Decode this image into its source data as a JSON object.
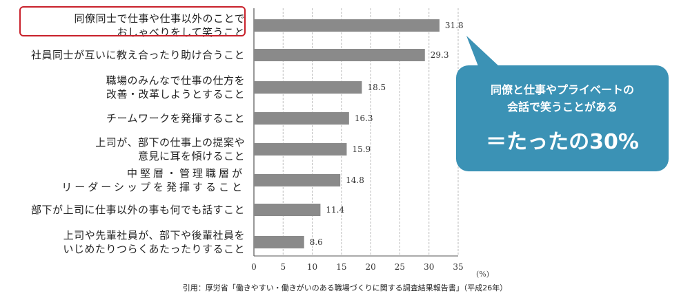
{
  "chart_data": {
    "type": "bar",
    "orientation": "horizontal",
    "categories": [
      [
        "同僚同士で仕事や仕事以外のことで",
        "おしゃべりをして笑うこと"
      ],
      [
        "社員同士が互いに教え合ったり助け合うこと"
      ],
      [
        "職場のみんなで仕事の仕方を",
        "改善・改革しようとすること"
      ],
      [
        "チームワークを発揮すること"
      ],
      [
        "上司が、部下の仕事上の提案や",
        "意見に耳を傾けること"
      ],
      [
        "中堅層・管理職層が",
        "リーダーシップを発揮すること"
      ],
      [
        "部下が上司に仕事以外の事も何でも話すこと"
      ],
      [
        "上司や先輩社員が、部下や後輩社員を",
        "いじめたりつらくあたったりすること"
      ]
    ],
    "values": [
      31.8,
      29.3,
      18.5,
      16.3,
      15.9,
      14.8,
      11.4,
      8.6
    ],
    "value_labels": [
      "31.8",
      "29.3",
      "18.5",
      "16.3",
      "15.9",
      "14.8",
      "11.4",
      "8.6"
    ],
    "xlim": [
      0,
      35
    ],
    "xticks": [
      "0",
      "5",
      "10",
      "15",
      "20",
      "25",
      "30",
      "35"
    ],
    "unit_label": "(%)",
    "bar_color": "#8a8a8a",
    "highlight_color": "#c8202a"
  },
  "callout": {
    "line1": "同僚と仕事やプライベートの",
    "line2": "会話で笑うことがある",
    "line3": "＝たったの30%",
    "color": "#3b92b5"
  },
  "source": "引用：厚労省「働きやすい・働きがいのある職場づくりに関する調査結果報告書」（平成26年）"
}
